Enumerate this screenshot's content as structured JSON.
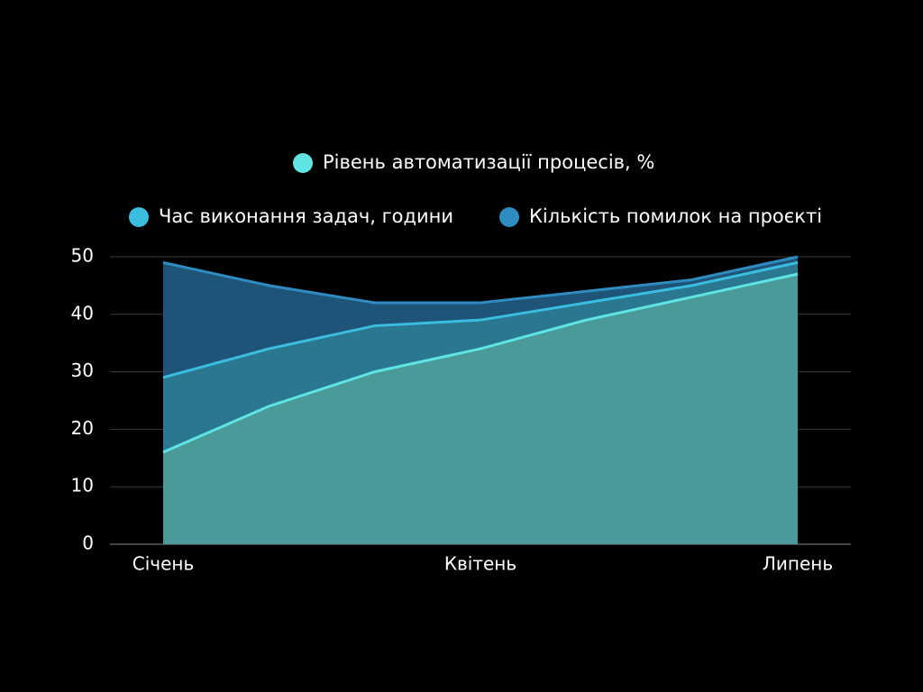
{
  "chart_data": {
    "type": "area",
    "categories": [
      "Січень",
      null,
      null,
      "Квітень",
      null,
      null,
      "Липень"
    ],
    "series": [
      {
        "name": "Рівень автоматизації процесів, %",
        "color": "#5fe3e3",
        "values": [
          16,
          24,
          30,
          34,
          39,
          43,
          47
        ]
      },
      {
        "name": "Час виконання задач, години",
        "color": "#3bbde0",
        "values": [
          29,
          34,
          38,
          39,
          42,
          45,
          49
        ]
      },
      {
        "name": "Кількість помилок на проєкті",
        "color": "#2e8cc0",
        "values": [
          49,
          45,
          42,
          42,
          44,
          46,
          50
        ]
      }
    ],
    "ylim": [
      0,
      50
    ],
    "yticks": [
      0,
      10,
      20,
      30,
      40,
      50
    ],
    "grid": true
  }
}
